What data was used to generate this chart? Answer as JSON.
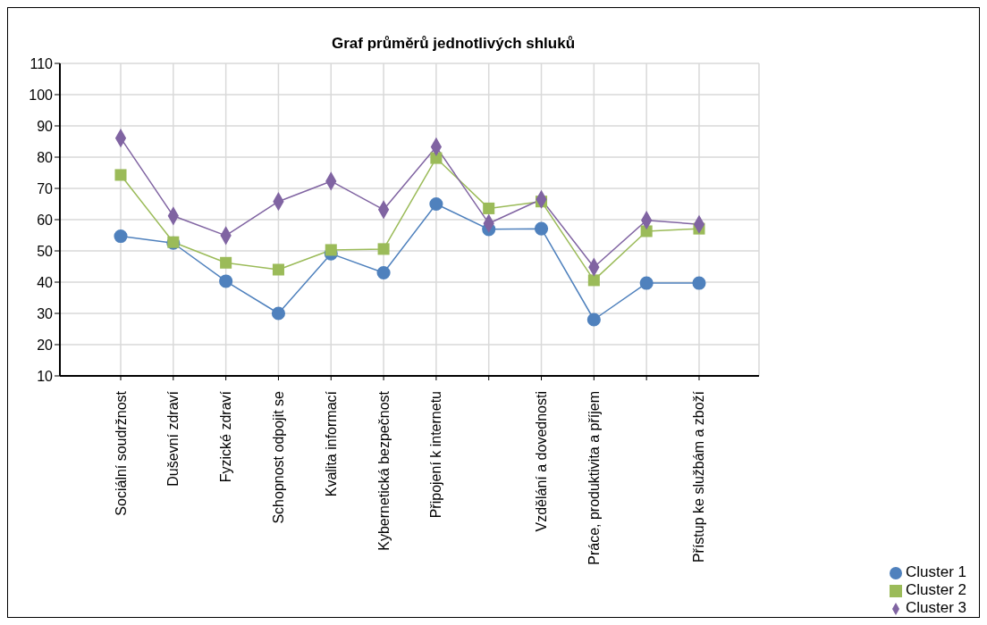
{
  "chart_data": {
    "type": "line",
    "title": "Graf průměrů jednotlivých shluků",
    "categories": [
      "Sociální soudržnost",
      "Duševní zdraví",
      "Fyzické zdraví",
      "Schopnost odpojit se",
      "Kvalita informací",
      "Kybernetická bezpečnost",
      "Připojení k internetu",
      null,
      "Vzdělání a dovednosti",
      "Práce, produktivita a příjem",
      null,
      "Přístup ke službám a zboží"
    ],
    "series": [
      {
        "name": "Cluster  1",
        "color": "#4f81bd",
        "marker": "circle",
        "values": [
          54.7,
          52.5,
          40.3,
          30,
          49.1,
          43,
          65,
          56.9,
          57.1,
          28,
          39.7,
          39.7
        ]
      },
      {
        "name": "Cluster  2",
        "color": "#9bbb59",
        "marker": "square",
        "values": [
          74.3,
          52.8,
          46.2,
          44,
          50.3,
          50.6,
          79.7,
          63.6,
          65.8,
          40.6,
          56.3,
          57.1
        ]
      },
      {
        "name": "Cluster  3",
        "color": "#8064a2",
        "marker": "diamond",
        "values": [
          86.1,
          61.2,
          54.9,
          65.8,
          72.3,
          63.2,
          83.3,
          58.8,
          66.5,
          44.8,
          59.8,
          58.5
        ]
      }
    ],
    "ylim": [
      10,
      110
    ],
    "yticks": [
      10,
      20,
      30,
      40,
      50,
      60,
      70,
      80,
      90,
      100,
      110
    ],
    "grid": true,
    "legend": "bottom right",
    "line_style": "solid"
  }
}
